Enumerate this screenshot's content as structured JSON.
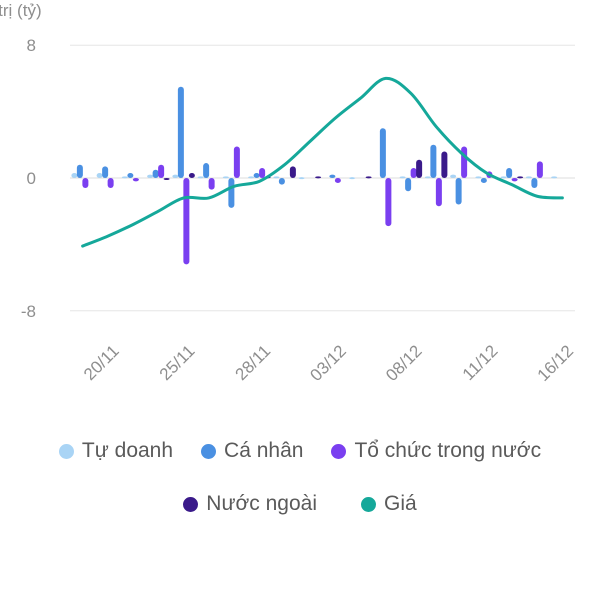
{
  "chart_data": {
    "type": "bar",
    "ylabel": "Giá trị (tỷ)",
    "ylabel_visible": "a trị (tỷ)",
    "ylim": [
      -8,
      8
    ],
    "yticks": [
      "8",
      "0",
      "-8"
    ],
    "xtick_labels": [
      {
        "label": "20/11",
        "index": 1
      },
      {
        "label": "25/11",
        "index": 4
      },
      {
        "label": "28/11",
        "index": 7
      },
      {
        "label": "03/12",
        "index": 10
      },
      {
        "label": "08/12",
        "index": 13
      },
      {
        "label": "11/12",
        "index": 16
      },
      {
        "label": "16/12",
        "index": 19
      }
    ],
    "n_days": 20,
    "bar_series": [
      {
        "name": "Tự doanh",
        "color": "#a9d4f5",
        "values": [
          0.3,
          0.3,
          0.1,
          0.2,
          0.2,
          0.1,
          0.1,
          0.1,
          0.1,
          0.05,
          0,
          0.05,
          0,
          0.1,
          0.1,
          0.2,
          0.1,
          0.1,
          0.1,
          0.1
        ]
      },
      {
        "name": "Cá nhân",
        "color": "#4a90e2",
        "values": [
          0.8,
          0.7,
          0.3,
          0.5,
          5.5,
          0.9,
          -1.8,
          0.3,
          -0.4,
          0,
          0.2,
          0,
          3.0,
          -0.8,
          2.0,
          -1.6,
          -0.3,
          0.6,
          -0.6,
          0
        ]
      },
      {
        "name": "Tổ chức trong nước",
        "color": "#7a3ff0",
        "values": [
          -0.6,
          -0.6,
          -0.2,
          0.8,
          -5.2,
          -0.7,
          1.9,
          0.6,
          0,
          0,
          -0.3,
          0,
          -2.9,
          0.6,
          -1.7,
          1.9,
          0.4,
          -0.2,
          1.0,
          0
        ]
      },
      {
        "name": "Nước ngoài",
        "color": "#3a1a8a",
        "values": [
          0,
          0,
          0,
          -0.1,
          0.3,
          0,
          0,
          0.1,
          0.7,
          0.1,
          0,
          0.1,
          0,
          1.1,
          1.6,
          0,
          0,
          0.1,
          0,
          0
        ]
      }
    ],
    "line_series": {
      "name": "Giá",
      "color": "#15a89a",
      "values": [
        -4.1,
        -3.5,
        -2.8,
        -2.0,
        -1.2,
        -1.2,
        -0.5,
        -0.2,
        0.8,
        2.2,
        3.6,
        4.8,
        6.0,
        5.1,
        3.1,
        1.5,
        0.3,
        -0.4,
        -1.1,
        -1.2
      ]
    }
  },
  "legend": [
    {
      "label": "Tự doanh",
      "color": "#a9d4f5"
    },
    {
      "label": "Cá nhân",
      "color": "#4a90e2"
    },
    {
      "label": "Tổ chức trong nước",
      "color": "#7a3ff0"
    },
    {
      "label": "Nước ngoài",
      "color": "#3a1a8a"
    },
    {
      "label": "Giá",
      "color": "#15a89a"
    }
  ]
}
